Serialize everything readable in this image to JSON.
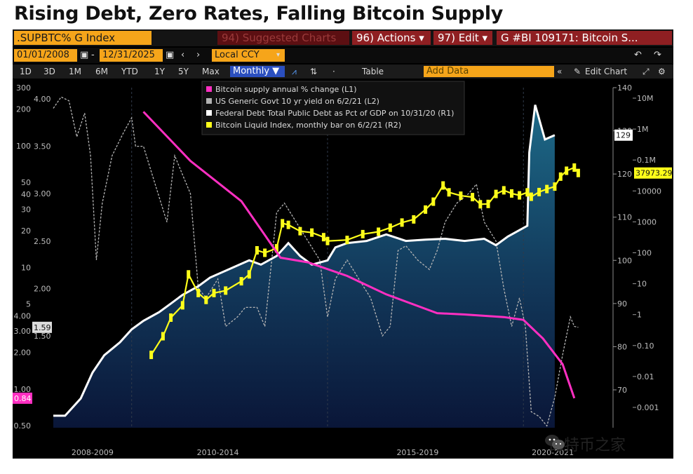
{
  "title": "Rising Debt, Zero Rates, Falling Bitcoin Supply",
  "toolbar": {
    "ticker": ".SUPBTC% G Index",
    "suggested": "94) Suggested Charts",
    "actions": "96) Actions ▾",
    "edit": "97) Edit ▾",
    "chart_id": "G #BI 109171: Bitcoin S...",
    "start_date": "01/01/2008",
    "end_date": "12/31/2025",
    "currency": "Local CCY",
    "periods": [
      "1D",
      "3D",
      "1M",
      "6M",
      "YTD",
      "1Y",
      "5Y",
      "Max"
    ],
    "frequency": "Monthly ▼",
    "table_label": "Table",
    "add_data": "Add Data",
    "edit_chart": "Edit Chart"
  },
  "chart_data": {
    "type": "line",
    "x_labels": [
      "2008-2009",
      "2010-2014",
      "2015-2019",
      "2020-2021"
    ],
    "legend": [
      "Bitcoin supply annual % change (L1)",
      "US Generic Govt 10 yr yield on 6/2/21 (L2)",
      "Federal Debt Total Public Debt as Pct of GDP on 10/31/20 (R1)",
      "Bitcoin Liquid Index, monthly bar on 6/2/21 (R2)"
    ],
    "axes": {
      "L1": {
        "scale": "log",
        "ticks": [
          "300",
          "200",
          "100",
          "50",
          "40",
          "30",
          "20",
          "10",
          "5",
          "4.00",
          "3.00",
          "2.00",
          "1.00",
          "0.50"
        ]
      },
      "L2": {
        "scale": "linear",
        "ticks": [
          "4.00",
          "3.50",
          "3.00",
          "2.50",
          "2.00",
          "1.50"
        ]
      },
      "R1": {
        "scale": "linear",
        "ticks": [
          "140",
          "130",
          "120",
          "110",
          "100",
          "90",
          "80",
          "70"
        ]
      },
      "R2": {
        "scale": "log",
        "ticks": [
          "10M",
          "1M",
          "0.1M",
          "10000",
          "1000",
          "100",
          "10",
          "1",
          "0.10",
          "0.01",
          "0.001"
        ]
      }
    },
    "last_values": {
      "L1": "0.84",
      "L2": "1.59",
      "R1": "129",
      "R2": "37973.29"
    },
    "series": [
      {
        "name": "Bitcoin supply annual % change (L1)",
        "color": "#ff2fc2",
        "axis": "L1",
        "points": [
          [
            2010.3,
            190
          ],
          [
            2011.5,
            75
          ],
          [
            2012.8,
            35
          ],
          [
            2013.8,
            12
          ],
          [
            2014.5,
            11
          ],
          [
            2015.5,
            8.5
          ],
          [
            2016.5,
            6
          ],
          [
            2017.8,
            4.2
          ],
          [
            2018.5,
            4.1
          ],
          [
            2019.5,
            3.9
          ],
          [
            2020.0,
            3.7
          ],
          [
            2020.5,
            2.6
          ],
          [
            2021.0,
            1.6
          ],
          [
            2021.3,
            0.84
          ]
        ]
      },
      {
        "name": "US Generic Govt 10 yr yield on 6/2/21 (L2)",
        "color": "#b4b4b4",
        "axis": "L2",
        "points": [
          [
            2008.0,
            3.9
          ],
          [
            2008.2,
            4.02
          ],
          [
            2008.4,
            3.98
          ],
          [
            2008.6,
            3.6
          ],
          [
            2008.8,
            3.85
          ],
          [
            2008.95,
            3.4
          ],
          [
            2009.1,
            2.3
          ],
          [
            2009.25,
            2.9
          ],
          [
            2009.5,
            3.4
          ],
          [
            2009.8,
            3.65
          ],
          [
            2010.0,
            3.8
          ],
          [
            2010.1,
            3.5
          ],
          [
            2010.3,
            3.5
          ],
          [
            2010.6,
            3.1
          ],
          [
            2010.9,
            2.7
          ],
          [
            2011.1,
            3.4
          ],
          [
            2011.3,
            3.2
          ],
          [
            2011.5,
            3.0
          ],
          [
            2011.7,
            2.0
          ],
          [
            2011.9,
            1.9
          ],
          [
            2012.2,
            2.1
          ],
          [
            2012.4,
            1.6
          ],
          [
            2012.7,
            1.7
          ],
          [
            2012.9,
            1.8
          ],
          [
            2013.2,
            1.8
          ],
          [
            2013.4,
            1.6
          ],
          [
            2013.7,
            2.8
          ],
          [
            2013.9,
            2.9
          ],
          [
            2014.2,
            2.7
          ],
          [
            2014.5,
            2.5
          ],
          [
            2014.8,
            2.3
          ],
          [
            2015.0,
            1.7
          ],
          [
            2015.2,
            2.1
          ],
          [
            2015.5,
            2.3
          ],
          [
            2015.8,
            2.1
          ],
          [
            2016.1,
            1.9
          ],
          [
            2016.4,
            1.5
          ],
          [
            2016.6,
            1.6
          ],
          [
            2016.8,
            2.4
          ],
          [
            2017.0,
            2.45
          ],
          [
            2017.3,
            2.3
          ],
          [
            2017.6,
            2.2
          ],
          [
            2017.8,
            2.4
          ],
          [
            2018.0,
            2.7
          ],
          [
            2018.3,
            2.9
          ],
          [
            2018.6,
            3.0
          ],
          [
            2018.8,
            3.1
          ],
          [
            2019.0,
            2.7
          ],
          [
            2019.3,
            2.5
          ],
          [
            2019.5,
            2.0
          ],
          [
            2019.7,
            1.6
          ],
          [
            2019.9,
            1.9
          ],
          [
            2020.05,
            1.6
          ],
          [
            2020.2,
            0.7
          ],
          [
            2020.4,
            0.65
          ],
          [
            2020.6,
            0.55
          ],
          [
            2020.8,
            0.85
          ],
          [
            2021.0,
            1.3
          ],
          [
            2021.2,
            1.7
          ],
          [
            2021.3,
            1.6
          ],
          [
            2021.4,
            1.59
          ]
        ]
      },
      {
        "name": "Federal Debt Total Public Debt as Pct of GDP on 10/31/20 (R1)",
        "color": "#ffffff",
        "axis": "R1",
        "points": [
          [
            2008.0,
            64
          ],
          [
            2008.3,
            64
          ],
          [
            2008.7,
            68
          ],
          [
            2009.0,
            74
          ],
          [
            2009.3,
            78
          ],
          [
            2009.7,
            81
          ],
          [
            2010.0,
            84
          ],
          [
            2010.3,
            86
          ],
          [
            2010.7,
            88
          ],
          [
            2011.0,
            90
          ],
          [
            2011.3,
            92
          ],
          [
            2011.7,
            94
          ],
          [
            2012.0,
            96
          ],
          [
            2012.5,
            98
          ],
          [
            2013.0,
            100
          ],
          [
            2013.3,
            99
          ],
          [
            2013.7,
            101
          ],
          [
            2014.0,
            104
          ],
          [
            2014.3,
            101
          ],
          [
            2014.6,
            99
          ],
          [
            2015.0,
            100
          ],
          [
            2015.2,
            103
          ],
          [
            2015.5,
            104
          ],
          [
            2016.0,
            104.5
          ],
          [
            2016.5,
            106
          ],
          [
            2017.0,
            104.5
          ],
          [
            2017.5,
            104.8
          ],
          [
            2018.0,
            105
          ],
          [
            2018.5,
            104.5
          ],
          [
            2019.0,
            105
          ],
          [
            2019.3,
            103.5
          ],
          [
            2019.6,
            105.5
          ],
          [
            2019.9,
            107
          ],
          [
            2020.1,
            108
          ],
          [
            2020.15,
            125
          ],
          [
            2020.3,
            136
          ],
          [
            2020.55,
            128
          ],
          [
            2020.8,
            129
          ]
        ]
      },
      {
        "name": "Bitcoin Liquid Index, monthly bar on 6/2/21 (R2)",
        "color": "#ffff1a",
        "axis": "R2",
        "points": [
          [
            2010.5,
            0.05
          ],
          [
            2010.8,
            0.2
          ],
          [
            2011.0,
            0.8
          ],
          [
            2011.3,
            2
          ],
          [
            2011.45,
            20
          ],
          [
            2011.7,
            5
          ],
          [
            2011.9,
            3
          ],
          [
            2012.1,
            5
          ],
          [
            2012.4,
            6
          ],
          [
            2012.8,
            12
          ],
          [
            2013.0,
            20
          ],
          [
            2013.2,
            120
          ],
          [
            2013.4,
            100
          ],
          [
            2013.7,
            140
          ],
          [
            2013.85,
            900
          ],
          [
            2014.0,
            800
          ],
          [
            2014.3,
            500
          ],
          [
            2014.6,
            450
          ],
          [
            2014.9,
            320
          ],
          [
            2015.0,
            240
          ],
          [
            2015.5,
            260
          ],
          [
            2015.9,
            400
          ],
          [
            2016.3,
            480
          ],
          [
            2016.6,
            650
          ],
          [
            2016.9,
            950
          ],
          [
            2017.2,
            1200
          ],
          [
            2017.5,
            2500
          ],
          [
            2017.7,
            4500
          ],
          [
            2017.95,
            15000
          ],
          [
            2018.1,
            9000
          ],
          [
            2018.4,
            7000
          ],
          [
            2018.7,
            6300
          ],
          [
            2018.9,
            3700
          ],
          [
            2019.1,
            3800
          ],
          [
            2019.3,
            8000
          ],
          [
            2019.5,
            10500
          ],
          [
            2019.7,
            8300
          ],
          [
            2019.9,
            7200
          ],
          [
            2020.1,
            9000
          ],
          [
            2020.2,
            6500
          ],
          [
            2020.4,
            9200
          ],
          [
            2020.6,
            11500
          ],
          [
            2020.8,
            13800
          ],
          [
            2020.95,
            29000
          ],
          [
            2021.1,
            45000
          ],
          [
            2021.3,
            57000
          ],
          [
            2021.4,
            37973
          ]
        ]
      }
    ]
  },
  "watermark": {
    "text": "比特币之家"
  }
}
